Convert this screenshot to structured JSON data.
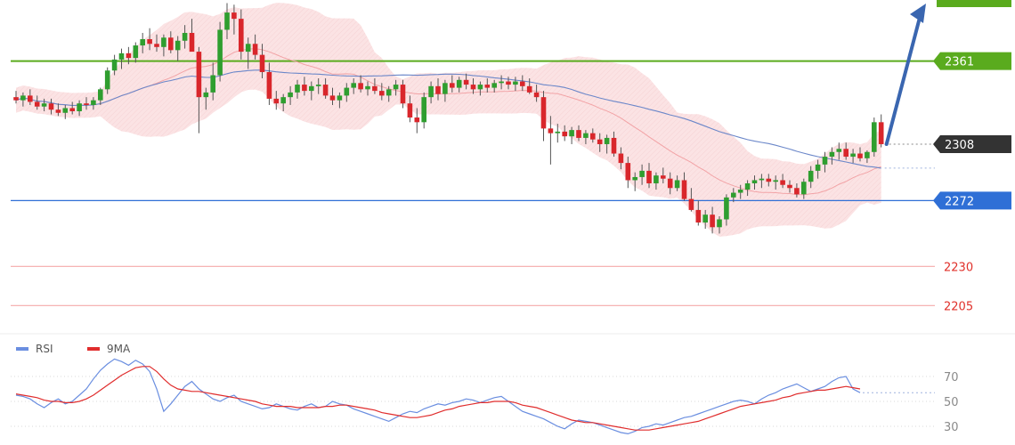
{
  "chart_data": [
    {
      "type": "candlestick",
      "title": "",
      "price_axis_labels": [
        {
          "value": 2361,
          "text": "2361",
          "kind": "resistance",
          "color": "#5aab1e"
        },
        {
          "value": 2308,
          "text": "2308",
          "kind": "last-price",
          "color": "#333333"
        },
        {
          "value": 2272,
          "text": "2272",
          "kind": "support",
          "color": "#2f6fd6"
        },
        {
          "value": 2230,
          "text": "2230",
          "kind": "target",
          "color": "#e0302a"
        },
        {
          "value": 2205,
          "text": "2205",
          "kind": "target",
          "color": "#e0302a"
        }
      ],
      "ylim": [
        2187,
        2400
      ],
      "bollinger_bands": true,
      "moving_average": "blue",
      "projection_arrow": "up",
      "candles_ohlc": [
        [
          2338,
          2342,
          2334,
          2336
        ],
        [
          2336,
          2341,
          2332,
          2339
        ],
        [
          2339,
          2343,
          2333,
          2335
        ],
        [
          2335,
          2339,
          2330,
          2332
        ],
        [
          2332,
          2337,
          2329,
          2334
        ],
        [
          2334,
          2337,
          2327,
          2330
        ],
        [
          2330,
          2334,
          2326,
          2328
        ],
        [
          2328,
          2333,
          2324,
          2331
        ],
        [
          2331,
          2335,
          2327,
          2329
        ],
        [
          2329,
          2336,
          2326,
          2334
        ],
        [
          2334,
          2338,
          2330,
          2333
        ],
        [
          2333,
          2338,
          2330,
          2336
        ],
        [
          2336,
          2344,
          2333,
          2343
        ],
        [
          2343,
          2357,
          2340,
          2355
        ],
        [
          2355,
          2365,
          2352,
          2362
        ],
        [
          2362,
          2369,
          2356,
          2366
        ],
        [
          2366,
          2370,
          2359,
          2363
        ],
        [
          2363,
          2373,
          2360,
          2371
        ],
        [
          2371,
          2379,
          2366,
          2375
        ],
        [
          2375,
          2382,
          2368,
          2372
        ],
        [
          2372,
          2378,
          2367,
          2370
        ],
        [
          2370,
          2378,
          2364,
          2376
        ],
        [
          2376,
          2380,
          2366,
          2368
        ],
        [
          2368,
          2377,
          2361,
          2374
        ],
        [
          2374,
          2384,
          2369,
          2379
        ],
        [
          2379,
          2388,
          2372,
          2367
        ],
        [
          2367,
          2370,
          2315,
          2338
        ],
        [
          2338,
          2344,
          2330,
          2341
        ],
        [
          2341,
          2360,
          2336,
          2352
        ],
        [
          2352,
          2386,
          2348,
          2381
        ],
        [
          2381,
          2398,
          2375,
          2392
        ],
        [
          2392,
          2397,
          2378,
          2388
        ],
        [
          2388,
          2394,
          2362,
          2367
        ],
        [
          2367,
          2376,
          2356,
          2372
        ],
        [
          2372,
          2378,
          2362,
          2365
        ],
        [
          2365,
          2372,
          2350,
          2354
        ],
        [
          2354,
          2360,
          2333,
          2337
        ],
        [
          2337,
          2342,
          2330,
          2334
        ],
        [
          2334,
          2340,
          2329,
          2338
        ],
        [
          2338,
          2345,
          2333,
          2341
        ],
        [
          2341,
          2349,
          2337,
          2346
        ],
        [
          2346,
          2351,
          2339,
          2342
        ],
        [
          2342,
          2348,
          2336,
          2345
        ],
        [
          2345,
          2350,
          2340,
          2346
        ],
        [
          2346,
          2350,
          2337,
          2339
        ],
        [
          2339,
          2344,
          2333,
          2336
        ],
        [
          2336,
          2341,
          2331,
          2339
        ],
        [
          2339,
          2347,
          2335,
          2344
        ],
        [
          2344,
          2350,
          2340,
          2347
        ],
        [
          2347,
          2352,
          2341,
          2343
        ],
        [
          2343,
          2348,
          2339,
          2345
        ],
        [
          2345,
          2350,
          2340,
          2342
        ],
        [
          2342,
          2347,
          2336,
          2339
        ],
        [
          2339,
          2345,
          2335,
          2343
        ],
        [
          2343,
          2349,
          2339,
          2346
        ],
        [
          2346,
          2349,
          2331,
          2334
        ],
        [
          2334,
          2339,
          2322,
          2325
        ],
        [
          2325,
          2331,
          2315,
          2322
        ],
        [
          2322,
          2341,
          2318,
          2338
        ],
        [
          2338,
          2348,
          2334,
          2345
        ],
        [
          2345,
          2350,
          2336,
          2340
        ],
        [
          2340,
          2349,
          2335,
          2347
        ],
        [
          2347,
          2352,
          2341,
          2344
        ],
        [
          2344,
          2351,
          2341,
          2349
        ],
        [
          2349,
          2353,
          2343,
          2346
        ],
        [
          2346,
          2350,
          2340,
          2343
        ],
        [
          2343,
          2348,
          2339,
          2346
        ],
        [
          2346,
          2350,
          2341,
          2344
        ],
        [
          2344,
          2349,
          2341,
          2347
        ],
        [
          2347,
          2352,
          2343,
          2348
        ],
        [
          2348,
          2351,
          2343,
          2346
        ],
        [
          2346,
          2351,
          2342,
          2348
        ],
        [
          2348,
          2352,
          2342,
          2345
        ],
        [
          2345,
          2350,
          2340,
          2341
        ],
        [
          2341,
          2346,
          2335,
          2338
        ],
        [
          2338,
          2342,
          2310,
          2318
        ],
        [
          2318,
          2326,
          2295,
          2315
        ],
        [
          2315,
          2321,
          2309,
          2316
        ],
        [
          2316,
          2320,
          2310,
          2313
        ],
        [
          2313,
          2319,
          2308,
          2317
        ],
        [
          2317,
          2320,
          2310,
          2312
        ],
        [
          2312,
          2317,
          2308,
          2315
        ],
        [
          2315,
          2318,
          2309,
          2311
        ],
        [
          2311,
          2315,
          2303,
          2308
        ],
        [
          2308,
          2314,
          2302,
          2312
        ],
        [
          2312,
          2316,
          2300,
          2302
        ],
        [
          2302,
          2306,
          2292,
          2296
        ],
        [
          2296,
          2300,
          2280,
          2285
        ],
        [
          2285,
          2290,
          2278,
          2287
        ],
        [
          2287,
          2295,
          2282,
          2291
        ],
        [
          2291,
          2296,
          2280,
          2283
        ],
        [
          2283,
          2290,
          2279,
          2288
        ],
        [
          2288,
          2293,
          2283,
          2286
        ],
        [
          2286,
          2290,
          2276,
          2280
        ],
        [
          2280,
          2288,
          2278,
          2285
        ],
        [
          2285,
          2290,
          2272,
          2273
        ],
        [
          2273,
          2280,
          2265,
          2266
        ],
        [
          2266,
          2272,
          2256,
          2258
        ],
        [
          2258,
          2266,
          2254,
          2263
        ],
        [
          2263,
          2268,
          2251,
          2255
        ],
        [
          2255,
          2262,
          2251,
          2260
        ],
        [
          2260,
          2276,
          2256,
          2274
        ],
        [
          2274,
          2280,
          2271,
          2277
        ],
        [
          2277,
          2282,
          2273,
          2279
        ],
        [
          2279,
          2285,
          2275,
          2283
        ],
        [
          2283,
          2288,
          2279,
          2285
        ],
        [
          2285,
          2289,
          2280,
          2286
        ],
        [
          2286,
          2289,
          2281,
          2284
        ],
        [
          2284,
          2288,
          2279,
          2285
        ],
        [
          2285,
          2289,
          2280,
          2282
        ],
        [
          2282,
          2285,
          2277,
          2280
        ],
        [
          2280,
          2283,
          2274,
          2276
        ],
        [
          2276,
          2286,
          2273,
          2284
        ],
        [
          2284,
          2294,
          2280,
          2291
        ],
        [
          2291,
          2298,
          2286,
          2295
        ],
        [
          2295,
          2303,
          2290,
          2300
        ],
        [
          2300,
          2306,
          2295,
          2303
        ],
        [
          2303,
          2309,
          2298,
          2305
        ],
        [
          2305,
          2309,
          2298,
          2300
        ],
        [
          2300,
          2305,
          2296,
          2302
        ],
        [
          2302,
          2306,
          2297,
          2299
        ],
        [
          2299,
          2304,
          2296,
          2303
        ],
        [
          2303,
          2325,
          2300,
          2322
        ],
        [
          2322,
          2327,
          2306,
          2308
        ]
      ]
    },
    {
      "type": "line",
      "title": "",
      "legend": [
        "RSI",
        "9MA"
      ],
      "series": [
        {
          "name": "RSI",
          "color": "#6a8ee0",
          "values": [
            55,
            54,
            52,
            48,
            45,
            49,
            52,
            48,
            50,
            55,
            60,
            68,
            75,
            80,
            84,
            82,
            79,
            83,
            80,
            74,
            60,
            42,
            48,
            55,
            62,
            66,
            60,
            56,
            52,
            50,
            53,
            55,
            50,
            48,
            46,
            44,
            45,
            48,
            46,
            44,
            43,
            46,
            48,
            45,
            46,
            50,
            48,
            47,
            44,
            42,
            40,
            38,
            36,
            34,
            37,
            40,
            42,
            41,
            44,
            46,
            48,
            47,
            49,
            50,
            52,
            51,
            49,
            51,
            53,
            54,
            50,
            46,
            42,
            40,
            38,
            36,
            33,
            30,
            28,
            32,
            35,
            34,
            33,
            31,
            29,
            27,
            25,
            24,
            26,
            29,
            30,
            32,
            31,
            33,
            35,
            37,
            38,
            40,
            42,
            44,
            46,
            48,
            50,
            51,
            50,
            48,
            52,
            55,
            57,
            60,
            62,
            64,
            61,
            58,
            60,
            62,
            66,
            69,
            70,
            60,
            57
          ]
        },
        {
          "name": "9MA",
          "color": "#e02d2d",
          "values": [
            56,
            55,
            54,
            53,
            51,
            50,
            50,
            49,
            49,
            50,
            52,
            55,
            59,
            63,
            67,
            71,
            74,
            77,
            78,
            78,
            74,
            68,
            63,
            60,
            59,
            58,
            58,
            57,
            56,
            55,
            54,
            53,
            52,
            51,
            50,
            48,
            47,
            46,
            46,
            46,
            45,
            45,
            45,
            45,
            46,
            46,
            47,
            47,
            46,
            45,
            44,
            43,
            41,
            40,
            39,
            38,
            37,
            37,
            38,
            39,
            41,
            43,
            44,
            46,
            47,
            48,
            49,
            49,
            50,
            50,
            50,
            49,
            47,
            46,
            45,
            43,
            41,
            39,
            37,
            35,
            34,
            33,
            33,
            32,
            31,
            30,
            29,
            28,
            27,
            27,
            27,
            28,
            29,
            30,
            31,
            32,
            33,
            34,
            36,
            38,
            40,
            42,
            44,
            46,
            47,
            48,
            49,
            50,
            51,
            53,
            54,
            56,
            57,
            58,
            59,
            59,
            60,
            61,
            62,
            61,
            60
          ]
        }
      ],
      "y_tick_labels": [
        "70",
        "50",
        "30"
      ],
      "ylim": [
        15,
        90
      ]
    }
  ]
}
